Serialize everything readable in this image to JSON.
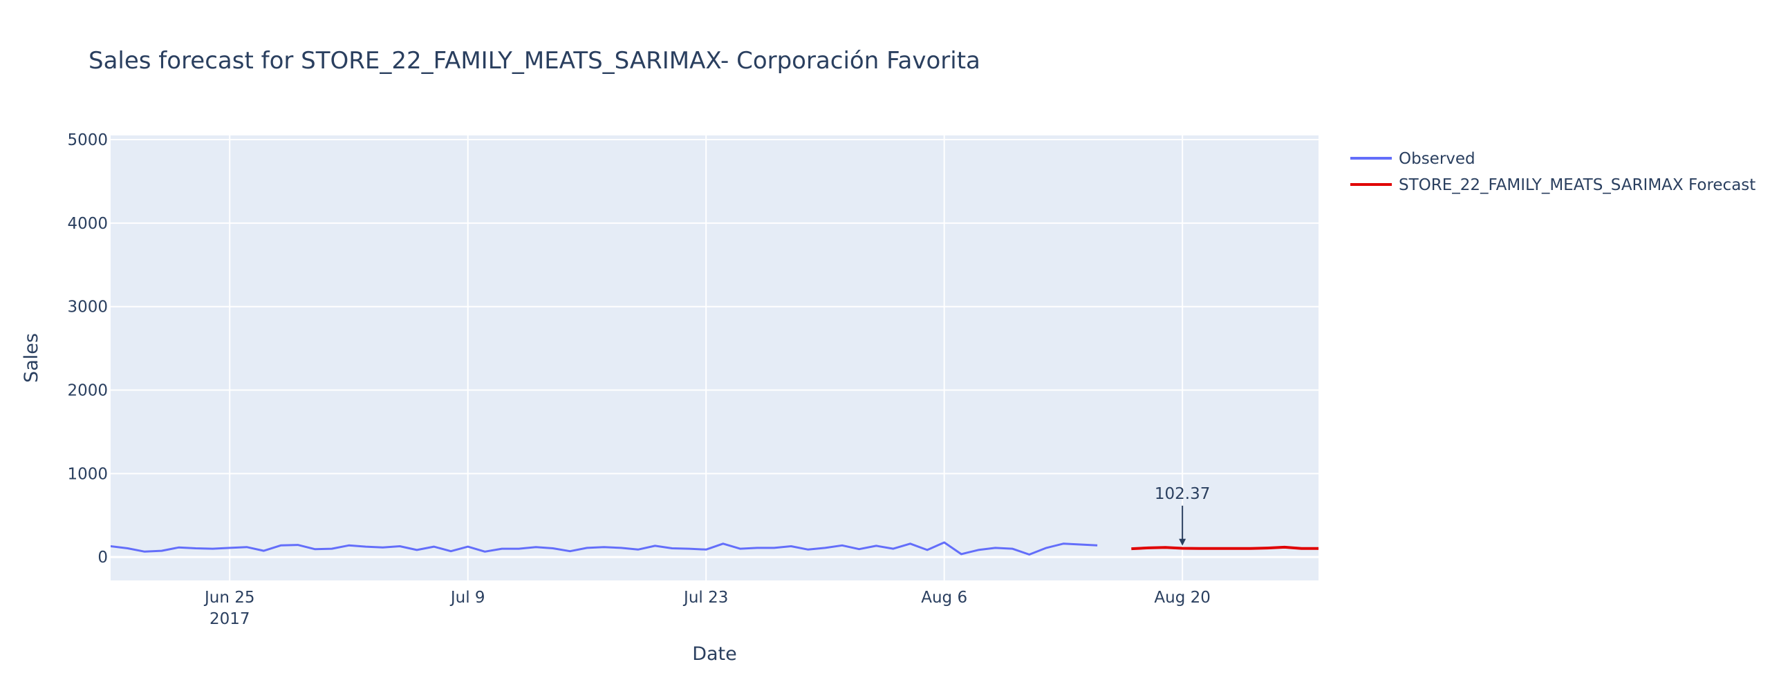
{
  "chart_data": {
    "type": "line",
    "title": "Sales forecast for STORE_22_FAMILY_MEATS_SARIMAX- Corporación Favorita",
    "xlabel": "Date",
    "ylabel": "Sales",
    "xlim": [
      "2017-06-18",
      "2017-08-28"
    ],
    "ylim": [
      -280,
      5050
    ],
    "x_ticks": [
      {
        "date": "2017-06-25",
        "label": "Jun 25",
        "sublabel": "2017"
      },
      {
        "date": "2017-07-09",
        "label": "Jul 9",
        "sublabel": ""
      },
      {
        "date": "2017-07-23",
        "label": "Jul 23",
        "sublabel": ""
      },
      {
        "date": "2017-08-06",
        "label": "Aug 6",
        "sublabel": ""
      },
      {
        "date": "2017-08-20",
        "label": "Aug 20",
        "sublabel": ""
      }
    ],
    "y_ticks": [
      0,
      1000,
      2000,
      3000,
      4000,
      5000
    ],
    "grid": true,
    "legend_position": "top-right",
    "series": [
      {
        "name": "Observed",
        "color": "#636efa",
        "start_date": "2017-06-17",
        "values": [
          80,
          130,
          105,
          65,
          75,
          115,
          105,
          100,
          110,
          120,
          75,
          140,
          145,
          95,
          100,
          140,
          125,
          115,
          130,
          85,
          125,
          70,
          125,
          65,
          100,
          100,
          120,
          105,
          70,
          110,
          120,
          110,
          90,
          135,
          105,
          100,
          90,
          160,
          100,
          110,
          110,
          130,
          90,
          110,
          140,
          95,
          135,
          100,
          160,
          85,
          175,
          35,
          85,
          110,
          100,
          30,
          110,
          160,
          150,
          140
        ]
      },
      {
        "name": "STORE_22_FAMILY_MEATS_SARIMAX Forecast",
        "color": "#e00000",
        "start_date": "2017-08-17",
        "values": [
          100,
          110,
          115,
          105,
          102.37,
          102,
          102,
          102,
          108,
          118,
          102,
          102,
          102,
          102,
          102,
          108,
          110
        ]
      }
    ],
    "annotations": [
      {
        "date": "2017-08-20",
        "value": 102.37,
        "text": "102.37"
      }
    ]
  }
}
